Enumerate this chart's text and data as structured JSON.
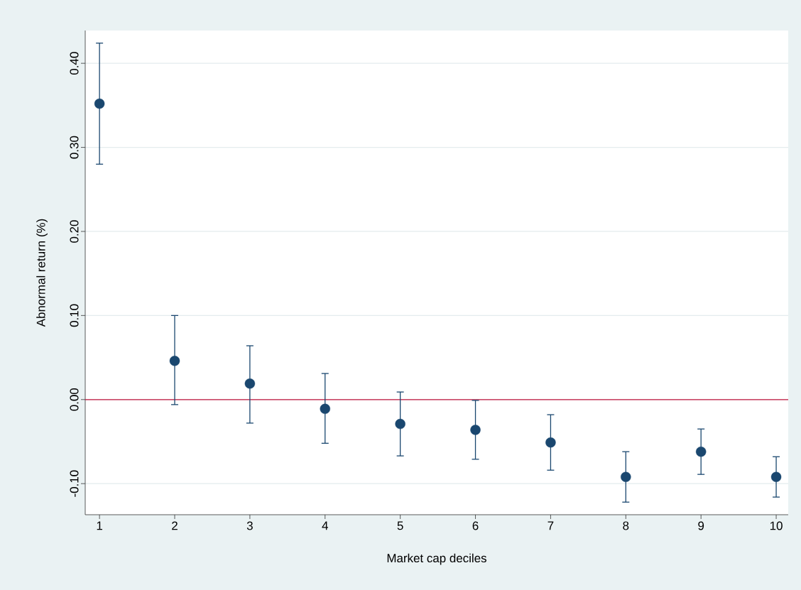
{
  "chart_data": {
    "type": "scatter",
    "xlabel": "Market cap deciles",
    "ylabel": "Abnormal return (%)",
    "x": [
      1,
      2,
      3,
      4,
      5,
      6,
      7,
      8,
      9,
      10
    ],
    "series": [
      {
        "color": "#1a476f",
        "values": [
          0.352,
          0.046,
          0.019,
          -0.011,
          -0.029,
          -0.036,
          -0.051,
          -0.092,
          -0.062,
          -0.092
        ],
        "errors": [
          [
            0.28,
            0.424
          ],
          [
            -0.006,
            0.1
          ],
          [
            -0.028,
            0.064
          ],
          [
            -0.052,
            0.031
          ],
          [
            -0.067,
            0.009
          ],
          [
            -0.071,
            -0.001
          ],
          [
            -0.084,
            -0.018
          ],
          [
            -0.122,
            -0.062
          ],
          [
            -0.089,
            -0.035
          ],
          [
            -0.116,
            -0.068
          ]
        ]
      }
    ],
    "xlim": [
      0.81,
      10.16
    ],
    "ylim": [
      -0.137,
      0.439
    ],
    "xticks": [
      1,
      2,
      3,
      4,
      5,
      6,
      7,
      8,
      9,
      10
    ],
    "yticks": [
      {
        "value": -0.1,
        "label": "-0.10"
      },
      {
        "value": 0,
        "label": "0.00"
      },
      {
        "value": 0.1,
        "label": "0.10"
      },
      {
        "value": 0.2,
        "label": "0.20"
      },
      {
        "value": 0.3,
        "label": "0.30"
      },
      {
        "value": 0.4,
        "label": "0.40"
      }
    ],
    "ref_lines": [
      {
        "axis": "y",
        "value": 0,
        "color": "#c0143c"
      }
    ],
    "grid": "y",
    "marker": "circle"
  }
}
